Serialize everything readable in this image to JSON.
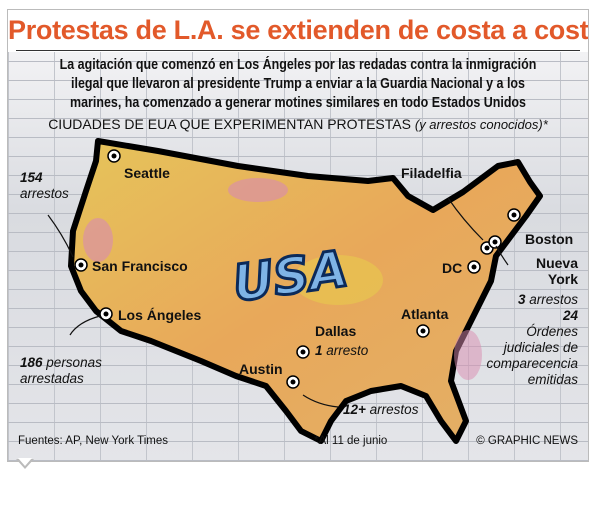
{
  "title": "Protestas de L.A. se extienden de costa a costa",
  "subtitle": [
    "La agitación que comenzó en Los Ángeles por las redadas contra la inmigración",
    "ilegal que llevaron al presidente Trump a enviar  a la Guardia Nacional y a los",
    "marines, ha comenzado a generar motines similares en todo Estados Unidos"
  ],
  "heading": "CIUDADES DE EUA QUE EXPERIMENTAN PROTESTAS",
  "heading_note": "(y arrestos conocidos)*",
  "map_logo": "USA",
  "cities": {
    "seattle": "Seattle",
    "san_francisco": "San Francisco",
    "los_angeles": "Los Ángeles",
    "dallas": "Dallas",
    "austin": "Austin",
    "atlanta": "Atlanta",
    "dc": "DC",
    "philadelphia": "Filadelfia",
    "boston": "Boston",
    "new_york": "Nueva York"
  },
  "notes": {
    "seattle_num": "154",
    "seattle_txt": "arrestos",
    "la_num": "186",
    "la_txt1": "personas",
    "la_txt2": "arrestadas",
    "dallas_num": "1",
    "dallas_txt": "arresto",
    "austin_num": "12+",
    "austin_txt": "arrestos",
    "ny_num": "3",
    "ny_txt": "arrestos",
    "ny_orders": "24",
    "ny_orders_txt": [
      "Órdenes",
      "judiciales de",
      "comparecencia",
      "emitidas"
    ]
  },
  "footer": {
    "source": "Fuentes: AP, New York Times",
    "date_note": "*Al 11 de junio",
    "credit": "© GRAPHIC NEWS"
  },
  "colors": {
    "title": "#e2592a",
    "land": "#e8b35a",
    "land_yellow": "#e8d24a",
    "land_pink": "#d98bb0",
    "outline": "#000000"
  }
}
